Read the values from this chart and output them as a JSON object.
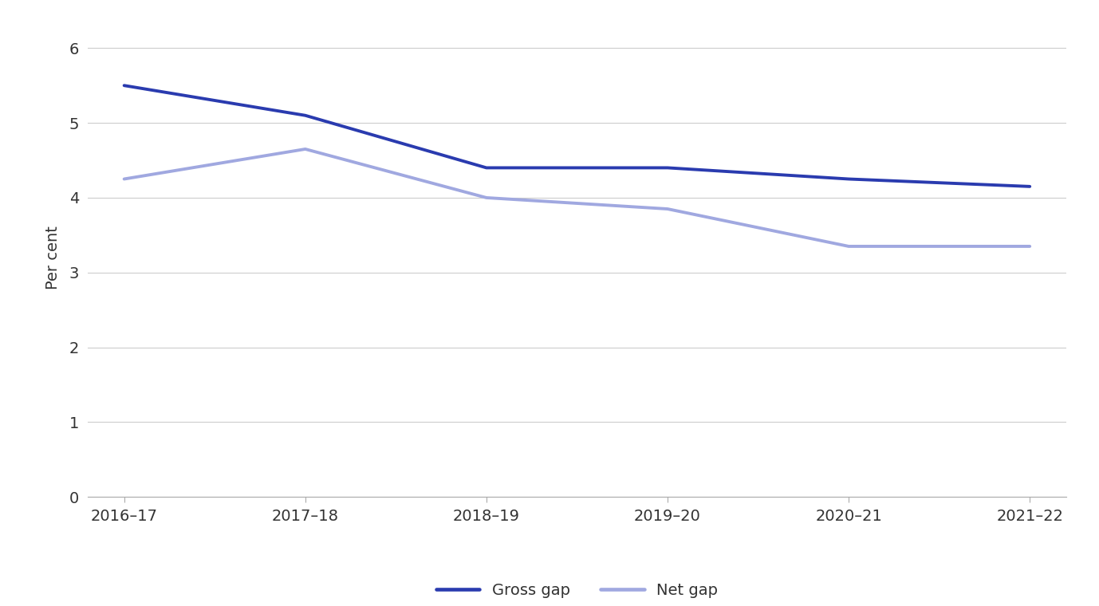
{
  "x_labels": [
    "2016–17",
    "2017–18",
    "2018–19",
    "2019–20",
    "2020–21",
    "2021–22"
  ],
  "x_positions": [
    0,
    1,
    2,
    3,
    4,
    5
  ],
  "gross_gap": [
    5.5,
    5.1,
    4.4,
    4.4,
    4.25,
    4.15
  ],
  "net_gap": [
    4.25,
    4.65,
    4.0,
    3.85,
    3.35,
    3.35
  ],
  "gross_color": "#2a3baf",
  "net_color": "#a0a8e0",
  "ylabel": "Per cent",
  "ylim": [
    0,
    6.4
  ],
  "yticks": [
    0,
    1,
    2,
    3,
    4,
    5,
    6
  ],
  "grid_color": "#cccccc",
  "background_color": "#ffffff",
  "legend_gross": "Gross gap",
  "legend_net": "Net gap",
  "line_width": 2.8,
  "tick_label_fontsize": 14,
  "ylabel_fontsize": 14,
  "legend_fontsize": 14
}
